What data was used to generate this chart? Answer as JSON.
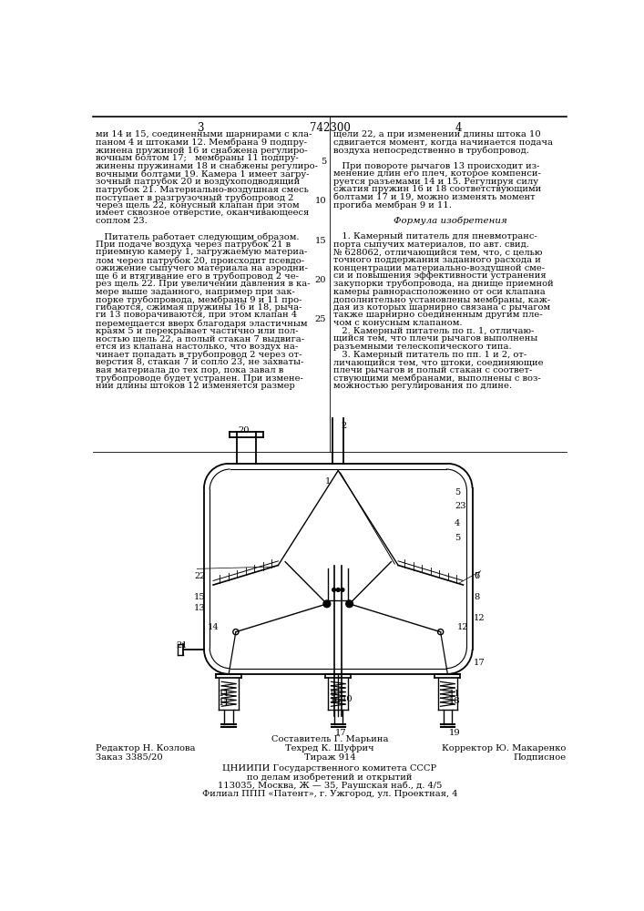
{
  "page_number_left": "3",
  "page_number_center": "742300",
  "page_number_right": "4",
  "col_left_text": [
    "ми 14 и 15, соединенными шарнирами с кла-",
    "паном 4 и штоками 12. Мембрана 9 подпру-",
    "жинена пружиной 16 и снабжена регулиро-",
    "вочным болтом 17;   мембраны 11 подпру-",
    "жинены пружинами 18 и снабжены регулиро-",
    "вочными болтами 19. Камера 1 имеет загру-",
    "зочный патрубок 20 и воздухоподводящий",
    "патрубок 21. Материально-воздушная смесь",
    "поступает в разгрузочный трубопровод 2",
    "через щель 22, конусный клапан при этом",
    "имеет сквозное отверстие, оканчивающееся",
    "соплом 23.",
    "",
    "   Питатель работает следующим образом.",
    "При подаче воздуха через патрубок 21 в",
    "приемную камеру 1, загружаемую материа-",
    "лом через патрубок 20, происходит псевдо-",
    "ожижение сыпучего материала на аэродни-",
    "ще 6 и втягивание его в трубопровод 2 че-",
    "рез щель 22. При увеличении давления в ка-",
    "мере выше заданного, например при зак-",
    "порке трубопровода, мембраны 9 и 11 про-",
    "гибаются, сжимая пружины 16 и 18, рыча-",
    "ги 13 поворачиваются, при этом клапан 4",
    "перемещается вверх благодаря эластичным",
    "краям 5 и перекрывает частично или пол-",
    "ностью щель 22, а полый стакан 7 выдвига-",
    "ется из клапана настолько, что воздух на-",
    "чинает попадать в трубопровод 2 через от-",
    "верстия 8, стакан 7 и сопло 23, не захваты-",
    "вая материала до тех пор, пока завал в",
    "трубопроводе будет устранен. При измене-",
    "нии длины штоков 12 изменяется размер"
  ],
  "col_right_text_line1": "щели 22, а при изменении длины штока 10",
  "col_right_text_line2": "сдвигается момент, когда начинается подача",
  "col_right_text_line3": "воздуха непосредственно в трубопровод.",
  "col_right_para2": [
    "   При повороте рычагов 13 происходит из-",
    "менение длин его плеч, которое компенси-",
    "руется разъемами 14 и 15. Регулируя силу",
    "сжатия пружин 16 и 18 соответствующими",
    "болтами 17 и 19, можно изменять момент",
    "прогиба мембран 9 и 11."
  ],
  "formula_title": "Формула изобретения",
  "col_right_formula": [
    "   1. Камерный питатель для пневмотранс-",
    "порта сыпучих материалов, по авт. свид.",
    "№ 628062, отличающийся тем, что, с целью",
    "точного поддержания заданного расхода и",
    "концентрации материально-воздушной сме-",
    "си и повышения эффективности устранения",
    "закупорки трубопровода, на днище приемной",
    "камеры равнорасположенно от оси клапана",
    "дополнительно установлены мембраны, каж-",
    "дая из которых шарнирно связана с рычагом",
    "также шарнирно соединенным другим пле-",
    "чом с конусным клапаном.",
    "   2. Камерный питатель по п. 1, отличаю-",
    "щийся тем, что плечи рычагов выполнены",
    "разъемными телескопического типа.",
    "   3. Камерный питатель по пп. 1 и 2, от-",
    "личающийся тем, что штоки, соединяющие",
    "плечи рычагов и полый стакан с соответ-",
    "ствующими мембранами, выполнены с воз-",
    "можностью регулирования по длине."
  ],
  "line_numbers_right": [
    "5",
    "10",
    "15",
    "20",
    "25"
  ],
  "footer_left1": "Редактор Н. Козлова",
  "footer_left2": "Заказ 3385/20",
  "footer_center0": "Составитель Г. Марьина",
  "footer_center1": "Техред К. Шуфрич",
  "footer_center2": "Тираж 914",
  "footer_right1": "Корректор Ю. Макаренко",
  "footer_right2": "Подписное",
  "footer_org1": "ЦНИИПИ Государственного комитета СССР",
  "footer_org2": "по делам изобретений и открытий",
  "footer_org3": "113035, Москва, Ж — 35, Раушская наб., д. 4/5",
  "footer_org4": "Филиал ППП «Патент», г. Ужгород, ул. Проектная, 4",
  "bg_color": "#ffffff",
  "text_color": "#000000"
}
